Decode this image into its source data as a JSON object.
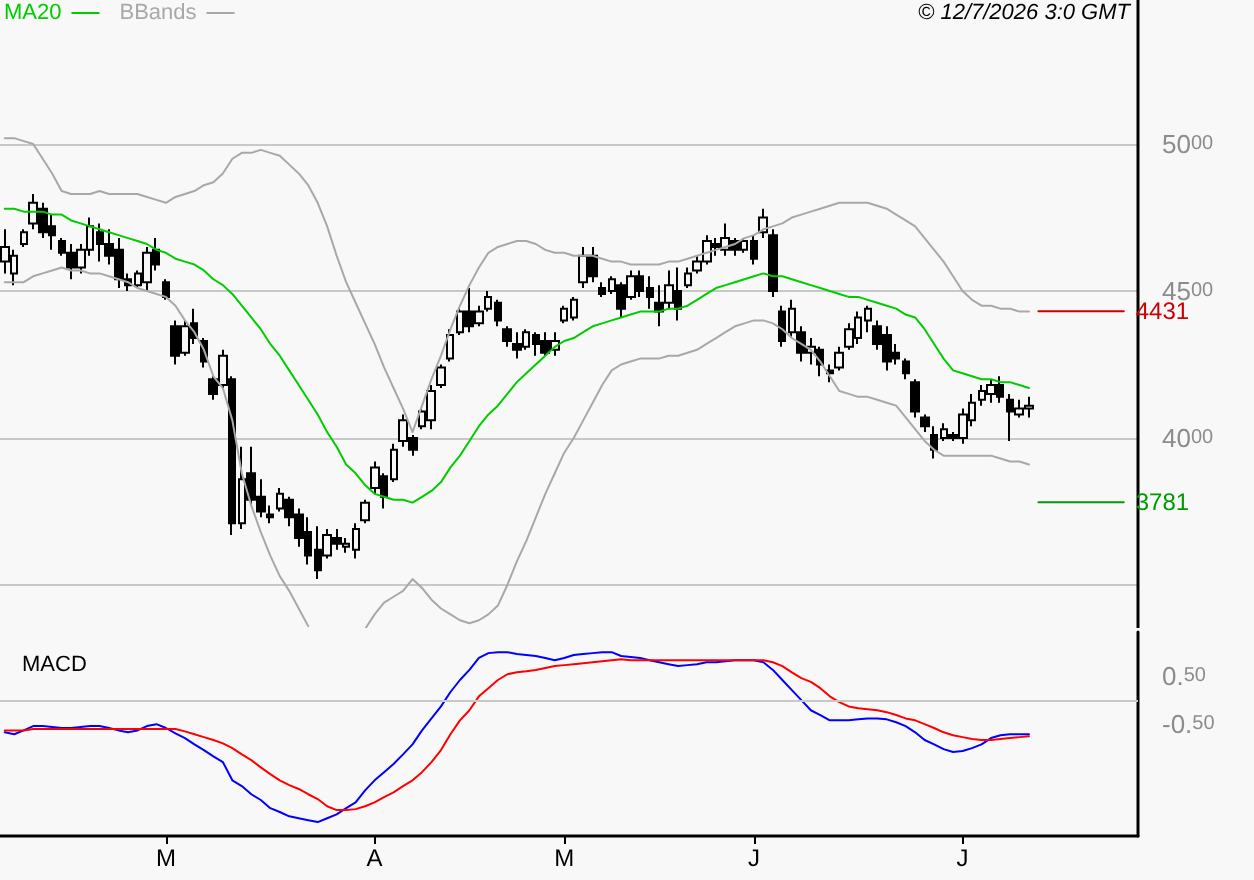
{
  "chart_data": [
    {
      "type": "candlestick",
      "color": "#000000",
      "categories": [
        null,
        null,
        null,
        null,
        null,
        null,
        null,
        null,
        null,
        null,
        null,
        null,
        null,
        null,
        null,
        null,
        null,
        null,
        null,
        null,
        null,
        null,
        null,
        null,
        null,
        null,
        null,
        null,
        null,
        null,
        null,
        null,
        null,
        null,
        null,
        null,
        null,
        null,
        null,
        null,
        null,
        null,
        null,
        null,
        null,
        null,
        null,
        null,
        null,
        null,
        null,
        null,
        null,
        null,
        null,
        null,
        null,
        null,
        null,
        null,
        null,
        null,
        null,
        null,
        null,
        null,
        null,
        null,
        null,
        null,
        null,
        null,
        null,
        null,
        null,
        null,
        null,
        null,
        null,
        null,
        null,
        null,
        null,
        null,
        null,
        null,
        null,
        null,
        null,
        null,
        null,
        null,
        null,
        null,
        null,
        null,
        null,
        null,
        null,
        null,
        null,
        null,
        null,
        null,
        null,
        null,
        null,
        null,
        null,
        null,
        null,
        null,
        null,
        null,
        null,
        null,
        null,
        null,
        null,
        null
      ],
      "ohlc": [
        [
          4600,
          4710,
          4560,
          4650
        ],
        [
          4560,
          4640,
          4520,
          4620
        ],
        [
          4660,
          4710,
          4650,
          4700
        ],
        [
          4730,
          4830,
          4710,
          4800
        ],
        [
          4780,
          4800,
          4680,
          4700
        ],
        [
          4720,
          4760,
          4640,
          4690
        ],
        [
          4670,
          4680,
          4620,
          4630
        ],
        [
          4630,
          4660,
          4540,
          4580
        ],
        [
          4580,
          4660,
          4560,
          4640
        ],
        [
          4640,
          4750,
          4620,
          4720
        ],
        [
          4700,
          4730,
          4600,
          4660
        ],
        [
          4660,
          4710,
          4590,
          4620
        ],
        [
          4640,
          4680,
          4510,
          4540
        ],
        [
          4540,
          4560,
          4500,
          4520
        ],
        [
          4520,
          4570,
          4510,
          4560
        ],
        [
          4530,
          4650,
          4500,
          4630
        ],
        [
          4640,
          4680,
          4570,
          4590
        ],
        [
          4530,
          4540,
          4470,
          4480
        ],
        [
          4380,
          4400,
          4250,
          4280
        ],
        [
          4290,
          4400,
          4280,
          4380
        ],
        [
          4390,
          4440,
          4320,
          4340
        ],
        [
          4330,
          4340,
          4240,
          4260
        ],
        [
          4200,
          4210,
          4130,
          4150
        ],
        [
          4180,
          4300,
          4170,
          4280
        ],
        [
          4200,
          4210,
          3670,
          3710
        ],
        [
          3710,
          3970,
          3690,
          3860
        ],
        [
          3880,
          3970,
          3770,
          3790
        ],
        [
          3800,
          3860,
          3730,
          3750
        ],
        [
          3740,
          3770,
          3710,
          3730
        ],
        [
          3760,
          3830,
          3750,
          3810
        ],
        [
          3790,
          3800,
          3700,
          3730
        ],
        [
          3740,
          3760,
          3630,
          3660
        ],
        [
          3680,
          3730,
          3570,
          3600
        ],
        [
          3620,
          3700,
          3520,
          3550
        ],
        [
          3600,
          3690,
          3590,
          3670
        ],
        [
          3660,
          3690,
          3620,
          3640
        ],
        [
          3630,
          3660,
          3610,
          3640
        ],
        [
          3620,
          3710,
          3590,
          3690
        ],
        [
          3720,
          3790,
          3710,
          3780
        ],
        [
          3830,
          3920,
          3810,
          3900
        ],
        [
          3870,
          3880,
          3760,
          3800
        ],
        [
          3860,
          3980,
          3850,
          3960
        ],
        [
          3990,
          4080,
          3970,
          4060
        ],
        [
          4000,
          4010,
          3940,
          3960
        ],
        [
          4040,
          4100,
          4030,
          4090
        ],
        [
          4060,
          4180,
          4030,
          4160
        ],
        [
          4180,
          4250,
          4170,
          4240
        ],
        [
          4270,
          4370,
          4260,
          4350
        ],
        [
          4360,
          4440,
          4350,
          4430
        ],
        [
          4430,
          4510,
          4360,
          4380
        ],
        [
          4390,
          4450,
          4380,
          4430
        ],
        [
          4440,
          4500,
          4430,
          4480
        ],
        [
          4460,
          4470,
          4380,
          4400
        ],
        [
          4370,
          4380,
          4310,
          4330
        ],
        [
          4320,
          4360,
          4270,
          4300
        ],
        [
          4310,
          4370,
          4300,
          4360
        ],
        [
          4350,
          4360,
          4280,
          4320
        ],
        [
          4330,
          4360,
          4280,
          4290
        ],
        [
          4300,
          4360,
          4280,
          4330
        ],
        [
          4400,
          4450,
          4390,
          4440
        ],
        [
          4410,
          4480,
          4400,
          4470
        ],
        [
          4530,
          4650,
          4510,
          4620
        ],
        [
          4620,
          4650,
          4530,
          4550
        ],
        [
          4510,
          4530,
          4480,
          4490
        ],
        [
          4500,
          4550,
          4490,
          4540
        ],
        [
          4520,
          4530,
          4410,
          4440
        ],
        [
          4480,
          4570,
          4470,
          4550
        ],
        [
          4550,
          4570,
          4480,
          4500
        ],
        [
          4510,
          4550,
          4440,
          4480
        ],
        [
          4460,
          4520,
          4380,
          4430
        ],
        [
          4460,
          4570,
          4440,
          4520
        ],
        [
          4500,
          4580,
          4400,
          4440
        ],
        [
          4520,
          4580,
          4510,
          4560
        ],
        [
          4570,
          4620,
          4560,
          4600
        ],
        [
          4600,
          4690,
          4590,
          4670
        ],
        [
          4660,
          4680,
          4620,
          4650
        ],
        [
          4640,
          4730,
          4620,
          4680
        ],
        [
          4670,
          4680,
          4620,
          4640
        ],
        [
          4640,
          4680,
          4630,
          4670
        ],
        [
          4670,
          4690,
          4590,
          4610
        ],
        [
          4700,
          4780,
          4680,
          4750
        ],
        [
          4690,
          4710,
          4480,
          4500
        ],
        [
          4430,
          4450,
          4310,
          4330
        ],
        [
          4360,
          4470,
          4340,
          4440
        ],
        [
          4360,
          4380,
          4260,
          4290
        ],
        [
          4290,
          4340,
          4250,
          4310
        ],
        [
          4300,
          4310,
          4210,
          4250
        ],
        [
          4230,
          4250,
          4190,
          4220
        ],
        [
          4240,
          4310,
          4230,
          4290
        ],
        [
          4310,
          4390,
          4300,
          4370
        ],
        [
          4340,
          4430,
          4320,
          4410
        ],
        [
          4400,
          4450,
          4360,
          4440
        ],
        [
          4380,
          4400,
          4300,
          4320
        ],
        [
          4350,
          4380,
          4230,
          4260
        ],
        [
          4290,
          4320,
          4250,
          4270
        ],
        [
          4260,
          4270,
          4200,
          4220
        ],
        [
          4190,
          4200,
          4070,
          4090
        ],
        [
          4070,
          4080,
          4020,
          4040
        ],
        [
          4010,
          4040,
          3930,
          3960
        ],
        [
          4000,
          4050,
          3990,
          4030
        ],
        [
          4010,
          4020,
          3990,
          4000
        ],
        [
          4000,
          4100,
          3980,
          4080
        ],
        [
          4060,
          4150,
          4040,
          4120
        ],
        [
          4130,
          4180,
          4110,
          4160
        ],
        [
          4150,
          4200,
          4120,
          4180
        ],
        [
          4180,
          4210,
          4120,
          4140
        ],
        [
          4130,
          4150,
          3990,
          4090
        ],
        [
          4080,
          4130,
          4070,
          4100
        ],
        [
          4100,
          4140,
          4070,
          4110
        ],
        null,
        null,
        null,
        null,
        null,
        null,
        null,
        null,
        null,
        null,
        null
      ],
      "series": [
        {
          "type": "line",
          "name": "MA20",
          "color": "#00cc00",
          "values": [
            4780,
            4780,
            4770,
            4770,
            4770,
            4760,
            4760,
            4740,
            4730,
            4720,
            4710,
            4700,
            4690,
            4680,
            4670,
            4660,
            4640,
            4630,
            4610,
            4600,
            4590,
            4570,
            4540,
            4520,
            4490,
            4450,
            4410,
            4370,
            4320,
            4280,
            4230,
            4180,
            4130,
            4080,
            4020,
            3970,
            3910,
            3880,
            3840,
            3810,
            3800,
            3790,
            3790,
            3780,
            3800,
            3820,
            3850,
            3900,
            3940,
            3990,
            4040,
            4080,
            4110,
            4150,
            4190,
            4220,
            4250,
            4280,
            4310,
            4330,
            4340,
            4360,
            4380,
            4390,
            4400,
            4410,
            4420,
            4430,
            4430,
            4430,
            4440,
            4440,
            4450,
            4470,
            4490,
            4510,
            4520,
            4530,
            4540,
            4550,
            4560,
            4550,
            4550,
            4540,
            4530,
            4520,
            4510,
            4500,
            4490,
            4480,
            4480,
            4470,
            4460,
            4450,
            4440,
            4420,
            4410,
            4370,
            4320,
            4270,
            4230,
            4220,
            4210,
            4200,
            4200,
            4190,
            4190,
            4180,
            4170,
            null,
            null,
            null,
            null,
            null,
            null,
            null,
            null,
            null,
            null,
            null
          ]
        },
        {
          "type": "line",
          "name": "BBands",
          "color": "#a8a8a8",
          "values": [
            5020,
            5020,
            5010,
            5000,
            4950,
            4900,
            4840,
            4830,
            4830,
            4830,
            4840,
            4830,
            4830,
            4830,
            4830,
            4820,
            4810,
            4800,
            4820,
            4830,
            4840,
            4860,
            4870,
            4900,
            4950,
            4970,
            4970,
            4980,
            4970,
            4960,
            4930,
            4900,
            4860,
            4800,
            4720,
            4620,
            4530,
            4460,
            4390,
            4320,
            4240,
            4170,
            4100,
            4020,
            4110,
            4200,
            4280,
            4370,
            4450,
            4520,
            4580,
            4630,
            4650,
            4660,
            4670,
            4670,
            4660,
            4640,
            4630,
            4630,
            4620,
            4620,
            4620,
            4610,
            4600,
            4600,
            4590,
            4590,
            4590,
            4590,
            4600,
            4600,
            4610,
            4620,
            4630,
            4640,
            4650,
            4660,
            4680,
            4690,
            4710,
            4720,
            4730,
            4750,
            4760,
            4770,
            4780,
            4790,
            4800,
            4800,
            4800,
            4800,
            4790,
            4780,
            4760,
            4740,
            4720,
            4680,
            4640,
            4600,
            4550,
            4500,
            4470,
            4450,
            4450,
            4440,
            4440,
            4430,
            4430,
            null,
            null,
            null,
            null,
            null,
            null,
            null,
            null,
            null,
            null,
            null
          ]
        },
        {
          "type": "line",
          "color": "#a8a8a8",
          "values": [
            4530,
            4530,
            4530,
            4550,
            4560,
            4570,
            4580,
            4570,
            4570,
            4560,
            4560,
            4550,
            4540,
            4530,
            4510,
            4500,
            4490,
            4480,
            4450,
            4400,
            4360,
            4300,
            4210,
            4170,
            4060,
            3880,
            3770,
            3680,
            3600,
            3530,
            3480,
            3420,
            3360,
            null,
            null,
            null,
            null,
            null,
            3350,
            3400,
            3440,
            3460,
            3480,
            3520,
            3490,
            3450,
            3420,
            3400,
            3380,
            3370,
            3380,
            3400,
            3430,
            3500,
            3580,
            3650,
            3730,
            3810,
            3880,
            3950,
            4000,
            4060,
            4120,
            4180,
            4230,
            4250,
            4260,
            4270,
            4270,
            4270,
            4280,
            4280,
            4290,
            4300,
            4320,
            4340,
            4360,
            4380,
            4390,
            4400,
            4400,
            4390,
            4370,
            4340,
            4320,
            4300,
            4260,
            4210,
            4160,
            4150,
            4140,
            4140,
            4130,
            4120,
            4110,
            4070,
            4030,
            3990,
            3960,
            3940,
            3940,
            3940,
            3940,
            3940,
            3940,
            3930,
            3920,
            3920,
            3910,
            null,
            null,
            null,
            null,
            null,
            null,
            null,
            null,
            null,
            null,
            null
          ]
        },
        {
          "type": "line",
          "color": "#cc0000",
          "values": [
            null,
            null,
            null,
            null,
            null,
            null,
            null,
            null,
            null,
            null,
            null,
            null,
            null,
            null,
            null,
            null,
            null,
            null,
            null,
            null,
            null,
            null,
            null,
            null,
            null,
            null,
            null,
            null,
            null,
            null,
            null,
            null,
            null,
            null,
            null,
            null,
            null,
            null,
            null,
            null,
            null,
            null,
            null,
            null,
            null,
            null,
            null,
            null,
            null,
            null,
            null,
            null,
            null,
            null,
            null,
            null,
            null,
            null,
            null,
            null,
            null,
            null,
            null,
            null,
            null,
            null,
            null,
            null,
            null,
            null,
            null,
            null,
            null,
            null,
            null,
            null,
            null,
            null,
            null,
            null,
            null,
            null,
            null,
            null,
            null,
            null,
            null,
            null,
            null,
            null,
            null,
            null,
            null,
            null,
            null,
            null,
            null,
            null,
            null,
            null,
            null,
            null,
            null,
            null,
            null,
            null,
            null,
            null,
            null,
            4431,
            4431,
            4431,
            4431,
            4431,
            4431,
            4431,
            4431,
            4431,
            4431,
            null
          ],
          "value_labels": [
            null,
            null,
            null,
            null,
            null,
            null,
            null,
            null,
            null,
            null,
            null,
            null,
            null,
            null,
            null,
            null,
            null,
            null,
            null,
            null,
            null,
            null,
            null,
            null,
            null,
            null,
            null,
            null,
            null,
            null,
            null,
            null,
            null,
            null,
            null,
            null,
            null,
            null,
            null,
            null,
            null,
            null,
            null,
            null,
            null,
            null,
            null,
            null,
            null,
            null,
            null,
            null,
            null,
            null,
            null,
            null,
            null,
            null,
            null,
            null,
            null,
            null,
            null,
            null,
            null,
            null,
            null,
            null,
            null,
            null,
            null,
            null,
            null,
            null,
            null,
            null,
            null,
            null,
            null,
            null,
            null,
            null,
            null,
            null,
            null,
            null,
            null,
            null,
            null,
            null,
            null,
            null,
            null,
            null,
            null,
            null,
            null,
            null,
            null,
            null,
            null,
            null,
            null,
            null,
            null,
            null,
            null,
            null,
            null,
            null,
            null,
            null,
            null,
            null,
            null,
            null,
            null,
            null,
            "4431",
            null
          ]
        },
        {
          "type": "line",
          "color": "#009900",
          "values": [
            null,
            null,
            null,
            null,
            null,
            null,
            null,
            null,
            null,
            null,
            null,
            null,
            null,
            null,
            null,
            null,
            null,
            null,
            null,
            null,
            null,
            null,
            null,
            null,
            null,
            null,
            null,
            null,
            null,
            null,
            null,
            null,
            null,
            null,
            null,
            null,
            null,
            null,
            null,
            null,
            null,
            null,
            null,
            null,
            null,
            null,
            null,
            null,
            null,
            null,
            null,
            null,
            null,
            null,
            null,
            null,
            null,
            null,
            null,
            null,
            null,
            null,
            null,
            null,
            null,
            null,
            null,
            null,
            null,
            null,
            null,
            null,
            null,
            null,
            null,
            null,
            null,
            null,
            null,
            null,
            null,
            null,
            null,
            null,
            null,
            null,
            null,
            null,
            null,
            null,
            null,
            null,
            null,
            null,
            null,
            null,
            null,
            null,
            null,
            null,
            null,
            null,
            null,
            null,
            null,
            null,
            null,
            null,
            null,
            3781,
            3781,
            3781,
            3781,
            3781,
            3781,
            3781,
            3781,
            3781,
            3781,
            null
          ],
          "value_labels": [
            null,
            null,
            null,
            null,
            null,
            null,
            null,
            null,
            null,
            null,
            null,
            null,
            null,
            null,
            null,
            null,
            null,
            null,
            null,
            null,
            null,
            null,
            null,
            null,
            null,
            null,
            null,
            null,
            null,
            null,
            null,
            null,
            null,
            null,
            null,
            null,
            null,
            null,
            null,
            null,
            null,
            null,
            null,
            null,
            null,
            null,
            null,
            null,
            null,
            null,
            null,
            null,
            null,
            null,
            null,
            null,
            null,
            null,
            null,
            null,
            null,
            null,
            null,
            null,
            null,
            null,
            null,
            null,
            null,
            null,
            null,
            null,
            null,
            null,
            null,
            null,
            null,
            null,
            null,
            null,
            null,
            null,
            null,
            null,
            null,
            null,
            null,
            null,
            null,
            null,
            null,
            null,
            null,
            null,
            null,
            null,
            null,
            null,
            null,
            null,
            null,
            null,
            null,
            null,
            null,
            null,
            null,
            null,
            null,
            null,
            null,
            null,
            null,
            null,
            null,
            null,
            null,
            null,
            "3781",
            null
          ]
        }
      ],
      "ylim": [
        3340,
        5490
      ],
      "yticks": [
        {
          "value": 3500,
          "label": null
        },
        4000,
        4500,
        5000
      ],
      "grid": "y",
      "legend": "top left",
      "tick_labels": "y",
      "marker": "none",
      "line_style": "solid",
      "annotations": [
        "© 12/7/2026 3:0 GMT"
      ]
    },
    {
      "type": "line",
      "title": "MACD",
      "categories": [
        null,
        null,
        null,
        null,
        null,
        null,
        null,
        null,
        null,
        null,
        null,
        null,
        null,
        null,
        null,
        null,
        null,
        "M",
        null,
        null,
        null,
        null,
        null,
        null,
        null,
        null,
        null,
        null,
        null,
        null,
        null,
        null,
        null,
        null,
        null,
        null,
        null,
        null,
        null,
        "A",
        null,
        null,
        null,
        null,
        null,
        null,
        null,
        null,
        null,
        null,
        null,
        null,
        null,
        null,
        null,
        null,
        null,
        null,
        null,
        "M",
        null,
        null,
        null,
        null,
        null,
        null,
        null,
        null,
        null,
        null,
        null,
        null,
        null,
        null,
        null,
        null,
        null,
        null,
        null,
        "J",
        null,
        null,
        null,
        null,
        null,
        null,
        null,
        null,
        null,
        null,
        null,
        null,
        null,
        null,
        null,
        null,
        null,
        null,
        null,
        null,
        null,
        "J",
        null,
        null,
        null,
        null,
        null,
        null,
        null,
        null,
        null,
        null,
        null,
        null,
        null,
        null,
        null,
        null,
        null,
        null
      ],
      "series": [
        {
          "color": "#0000ff",
          "values": [
            -0.67,
            -0.71,
            -0.63,
            -0.54,
            -0.54,
            -0.56,
            -0.58,
            -0.58,
            -0.56,
            -0.54,
            -0.54,
            -0.58,
            -0.63,
            -0.67,
            -0.63,
            -0.54,
            -0.5,
            -0.58,
            -0.69,
            -0.79,
            -0.92,
            -1.04,
            -1.17,
            -1.29,
            -1.67,
            -1.79,
            -1.96,
            -2.08,
            -2.25,
            -2.33,
            -2.42,
            -2.46,
            -2.5,
            -2.54,
            -2.46,
            -2.38,
            -2.25,
            -2.13,
            -1.88,
            -1.67,
            -1.5,
            -1.33,
            -1.13,
            -0.92,
            -0.63,
            -0.38,
            -0.13,
            0.17,
            0.42,
            0.63,
            0.88,
            0.98,
            1.0,
            1.0,
            0.96,
            0.94,
            0.92,
            0.88,
            0.83,
            0.88,
            0.94,
            0.96,
            0.98,
            1.0,
            1.0,
            0.92,
            0.9,
            0.88,
            0.83,
            0.79,
            0.75,
            0.71,
            0.73,
            0.75,
            0.79,
            0.79,
            0.81,
            0.83,
            0.83,
            0.83,
            0.79,
            0.63,
            0.42,
            0.21,
            0,
            -0.21,
            -0.31,
            -0.42,
            -0.42,
            -0.42,
            -0.4,
            -0.38,
            -0.38,
            -0.4,
            -0.46,
            -0.54,
            -0.67,
            -0.83,
            -0.92,
            -1.02,
            -1.08,
            -1.06,
            -1.0,
            -0.92,
            -0.79,
            -0.73,
            -0.71,
            -0.71,
            -0.71,
            null,
            null,
            null,
            null,
            null,
            null,
            null,
            null,
            null,
            null,
            null
          ]
        },
        {
          "color": "#ff0000",
          "values": [
            -0.63,
            -0.63,
            -0.63,
            -0.6,
            -0.6,
            -0.6,
            -0.6,
            -0.6,
            -0.6,
            -0.6,
            -0.6,
            -0.6,
            -0.6,
            -0.6,
            -0.6,
            -0.6,
            -0.6,
            -0.6,
            -0.6,
            -0.65,
            -0.71,
            -0.77,
            -0.83,
            -0.9,
            -1.0,
            -1.13,
            -1.25,
            -1.4,
            -1.54,
            -1.67,
            -1.77,
            -1.85,
            -1.96,
            -2.06,
            -2.21,
            -2.29,
            -2.29,
            -2.27,
            -2.21,
            -2.13,
            -2.02,
            -1.92,
            -1.79,
            -1.67,
            -1.5,
            -1.29,
            -1.04,
            -0.71,
            -0.42,
            -0.21,
            0.08,
            0.25,
            0.42,
            0.54,
            0.58,
            0.6,
            0.63,
            0.67,
            0.71,
            0.73,
            0.75,
            0.77,
            0.79,
            0.81,
            0.83,
            0.85,
            0.83,
            0.83,
            0.83,
            0.83,
            0.83,
            0.83,
            0.83,
            0.83,
            0.83,
            0.83,
            0.83,
            0.83,
            0.83,
            0.83,
            0.83,
            0.79,
            0.71,
            0.58,
            0.46,
            0.38,
            0.25,
            0.08,
            -0.04,
            -0.13,
            -0.17,
            -0.19,
            -0.21,
            -0.25,
            -0.31,
            -0.38,
            -0.42,
            -0.5,
            -0.58,
            -0.67,
            -0.73,
            -0.77,
            -0.81,
            -0.83,
            -0.83,
            -0.81,
            -0.79,
            -0.77,
            -0.75,
            null,
            null,
            null,
            null,
            null,
            null,
            null,
            null,
            null,
            null,
            null
          ]
        }
      ],
      "ylim": [
        -2.83,
        1.42
      ],
      "yticks": [
        {
          "value": -0.5,
          "label": "-0.50"
        },
        {
          "value": 0.5,
          "label": "0.50"
        }
      ],
      "grid": false,
      "marker": "none",
      "line_style": "solid",
      "ref_lines": [
        {
          "axis": "y",
          "value": 0,
          "color": "#c8c8c8"
        }
      ]
    }
  ]
}
